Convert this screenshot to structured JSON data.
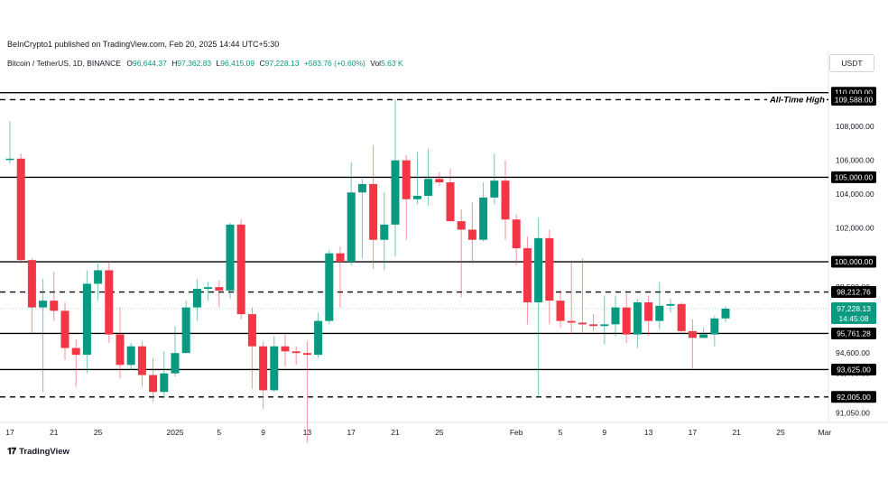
{
  "header": {
    "publisher": "BeInCrypto1 published on TradingView.com, Feb 20, 2025 14:44 UTC+5:30",
    "symbol": "Bitcoin / TetherUS, 1D, BINANCE",
    "o_label": "O",
    "o_value": "96,644.37",
    "h_label": "H",
    "h_value": "97,362.83",
    "l_label": "L",
    "l_value": "96,415.09",
    "c_label": "C",
    "c_value": "97,228.13",
    "change": "+583.76 (+0.60%)",
    "vol_label": "Vol",
    "vol_value": "5.63 K"
  },
  "currency_button": "USDT",
  "footer": {
    "brand": "TradingView",
    "logo_icon": "tradingview-logo-icon"
  },
  "colors": {
    "up": "#089981",
    "down": "#F23645",
    "line": "#000000",
    "price_tag_bg": "#000000"
  },
  "chart_data": {
    "type": "candlestick",
    "y_axis": {
      "ylim": [
        90500,
        111000
      ],
      "ticks": [
        {
          "value": 108000,
          "label": "108,000.00"
        },
        {
          "value": 106000,
          "label": "106,000.00"
        },
        {
          "value": 104000,
          "label": "104,000.00"
        },
        {
          "value": 102000,
          "label": "102,000.00"
        },
        {
          "value": 98500,
          "label": "98,500.00"
        },
        {
          "value": 94600,
          "label": "94,600.00"
        },
        {
          "value": 93400,
          "label": "93,400.00"
        },
        {
          "value": 91050,
          "label": "91,050.00"
        }
      ]
    },
    "x_axis": {
      "ticks": [
        {
          "index": 0,
          "label": "17"
        },
        {
          "index": 4,
          "label": "21"
        },
        {
          "index": 8,
          "label": "25"
        },
        {
          "index": 15,
          "label": "2025"
        },
        {
          "index": 19,
          "label": "5"
        },
        {
          "index": 23,
          "label": "9"
        },
        {
          "index": 27,
          "label": "13"
        },
        {
          "index": 31,
          "label": "17"
        },
        {
          "index": 35,
          "label": "21"
        },
        {
          "index": 39,
          "label": "25"
        },
        {
          "index": 46,
          "label": "Feb"
        },
        {
          "index": 50,
          "label": "5"
        },
        {
          "index": 54,
          "label": "9"
        },
        {
          "index": 58,
          "label": "13"
        },
        {
          "index": 62,
          "label": "17"
        },
        {
          "index": 66,
          "label": "21"
        },
        {
          "index": 70,
          "label": "25"
        },
        {
          "index": 74,
          "label": "Mar"
        }
      ]
    },
    "candles": [
      {
        "o": 106050,
        "h": 108300,
        "l": 105800,
        "c": 106100
      },
      {
        "o": 106100,
        "h": 106400,
        "l": 99900,
        "c": 100100
      },
      {
        "o": 100100,
        "h": 100200,
        "l": 95800,
        "c": 97300
      },
      {
        "o": 97300,
        "h": 99000,
        "l": 92300,
        "c": 97700
      },
      {
        "o": 97700,
        "h": 99400,
        "l": 96500,
        "c": 97100
      },
      {
        "o": 97100,
        "h": 97600,
        "l": 94200,
        "c": 94900
      },
      {
        "o": 94900,
        "h": 95400,
        "l": 92600,
        "c": 94500
      },
      {
        "o": 94500,
        "h": 99500,
        "l": 93400,
        "c": 98700
      },
      {
        "o": 98700,
        "h": 99900,
        "l": 97700,
        "c": 99500
      },
      {
        "o": 99500,
        "h": 100000,
        "l": 95200,
        "c": 95700
      },
      {
        "o": 95700,
        "h": 97300,
        "l": 93100,
        "c": 93900
      },
      {
        "o": 93900,
        "h": 95200,
        "l": 93600,
        "c": 95000
      },
      {
        "o": 95000,
        "h": 95300,
        "l": 92600,
        "c": 93300
      },
      {
        "o": 93300,
        "h": 94300,
        "l": 91700,
        "c": 92300
      },
      {
        "o": 92300,
        "h": 94700,
        "l": 91900,
        "c": 93400
      },
      {
        "o": 93400,
        "h": 96200,
        "l": 93200,
        "c": 94600
      },
      {
        "o": 94600,
        "h": 97700,
        "l": 94600,
        "c": 97300
      },
      {
        "o": 97300,
        "h": 99000,
        "l": 96500,
        "c": 98400
      },
      {
        "o": 98400,
        "h": 98800,
        "l": 97700,
        "c": 98500
      },
      {
        "o": 98500,
        "h": 98900,
        "l": 97300,
        "c": 98300
      },
      {
        "o": 98300,
        "h": 102300,
        "l": 97800,
        "c": 102200
      },
      {
        "o": 102200,
        "h": 102500,
        "l": 96600,
        "c": 96900
      },
      {
        "o": 96900,
        "h": 97300,
        "l": 92500,
        "c": 95000
      },
      {
        "o": 95000,
        "h": 95300,
        "l": 91300,
        "c": 92400
      },
      {
        "o": 92400,
        "h": 95600,
        "l": 92300,
        "c": 95000
      },
      {
        "o": 95000,
        "h": 95700,
        "l": 93800,
        "c": 94700
      },
      {
        "o": 94700,
        "h": 95000,
        "l": 93900,
        "c": 94600
      },
      {
        "o": 94600,
        "h": 95300,
        "l": 89300,
        "c": 94500
      },
      {
        "o": 94500,
        "h": 97000,
        "l": 94300,
        "c": 96500
      },
      {
        "o": 96500,
        "h": 100700,
        "l": 96300,
        "c": 100500
      },
      {
        "o": 100500,
        "h": 100900,
        "l": 97300,
        "c": 100000
      },
      {
        "o": 100000,
        "h": 105900,
        "l": 99800,
        "c": 104100
      },
      {
        "o": 104100,
        "h": 104900,
        "l": 100200,
        "c": 104600
      },
      {
        "o": 104600,
        "h": 106900,
        "l": 99600,
        "c": 101300
      },
      {
        "o": 101300,
        "h": 104100,
        "l": 99500,
        "c": 102200
      },
      {
        "o": 102200,
        "h": 109600,
        "l": 100300,
        "c": 106000
      },
      {
        "o": 106000,
        "h": 106300,
        "l": 101300,
        "c": 103700
      },
      {
        "o": 103700,
        "h": 106500,
        "l": 103400,
        "c": 103900
      },
      {
        "o": 103900,
        "h": 106700,
        "l": 103300,
        "c": 104900
      },
      {
        "o": 104900,
        "h": 105300,
        "l": 104500,
        "c": 104700
      },
      {
        "o": 104700,
        "h": 105500,
        "l": 102500,
        "c": 102400
      },
      {
        "o": 102400,
        "h": 103100,
        "l": 97900,
        "c": 101900
      },
      {
        "o": 101900,
        "h": 103500,
        "l": 99900,
        "c": 101300
      },
      {
        "o": 101300,
        "h": 104700,
        "l": 101200,
        "c": 103800
      },
      {
        "o": 103800,
        "h": 106400,
        "l": 103400,
        "c": 104800
      },
      {
        "o": 104800,
        "h": 106000,
        "l": 101300,
        "c": 102500
      },
      {
        "o": 102500,
        "h": 102800,
        "l": 99800,
        "c": 100800
      },
      {
        "o": 100800,
        "h": 101500,
        "l": 96300,
        "c": 97600
      },
      {
        "o": 97600,
        "h": 102600,
        "l": 92000,
        "c": 101400
      },
      {
        "o": 101400,
        "h": 101900,
        "l": 96300,
        "c": 97700
      },
      {
        "o": 97700,
        "h": 98300,
        "l": 96100,
        "c": 96500
      },
      {
        "o": 96500,
        "h": 100000,
        "l": 95700,
        "c": 96400
      },
      {
        "o": 96400,
        "h": 100200,
        "l": 95700,
        "c": 96300
      },
      {
        "o": 96300,
        "h": 96900,
        "l": 95900,
        "c": 96200
      },
      {
        "o": 96200,
        "h": 98000,
        "l": 95100,
        "c": 96300
      },
      {
        "o": 96300,
        "h": 98000,
        "l": 95600,
        "c": 97300
      },
      {
        "o": 97300,
        "h": 98100,
        "l": 95200,
        "c": 95700
      },
      {
        "o": 95700,
        "h": 97800,
        "l": 94900,
        "c": 97600
      },
      {
        "o": 97600,
        "h": 98000,
        "l": 95600,
        "c": 96500
      },
      {
        "o": 96500,
        "h": 98800,
        "l": 96000,
        "c": 97400
      },
      {
        "o": 97400,
        "h": 97800,
        "l": 97000,
        "c": 97500
      },
      {
        "o": 97500,
        "h": 97600,
        "l": 95800,
        "c": 95900
      },
      {
        "o": 95900,
        "h": 96600,
        "l": 93700,
        "c": 95500
      },
      {
        "o": 95500,
        "h": 96100,
        "l": 95500,
        "c": 95700
      },
      {
        "o": 95700,
        "h": 96800,
        "l": 95000,
        "c": 96650
      },
      {
        "o": 96650,
        "h": 97363,
        "l": 96415,
        "c": 97228
      }
    ],
    "levels": [
      {
        "value": 110000,
        "label": "110,000.00",
        "style": "solid"
      },
      {
        "value": 109588,
        "label": "109,588.00",
        "style": "dashed",
        "annotation": "All-Time High"
      },
      {
        "value": 105000,
        "label": "105,000.00",
        "style": "solid"
      },
      {
        "value": 100000,
        "label": "100,000.00",
        "style": "solid"
      },
      {
        "value": 98212.76,
        "label": "98,212.76",
        "style": "dashed"
      },
      {
        "value": 95761.28,
        "label": "95,761.28",
        "style": "solid"
      },
      {
        "value": 93625,
        "label": "93,625.00",
        "style": "solid"
      },
      {
        "value": 92005,
        "label": "92,005.00",
        "style": "dashed"
      }
    ],
    "current_price": {
      "value": 97228.13,
      "label": "97,228.13",
      "countdown": "14:45:08"
    }
  }
}
